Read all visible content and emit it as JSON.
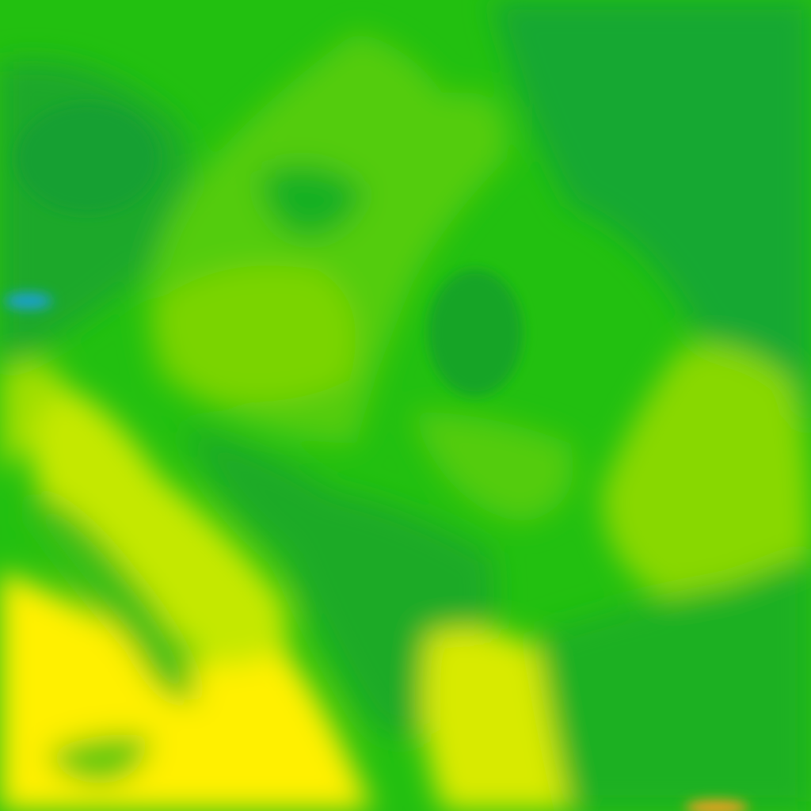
{
  "map": {
    "layer": "temperature-heatmap",
    "palette": {
      "cold_blue": "#1aa0d8",
      "dark_green": "#18a830",
      "green": "#22c010",
      "light_green": "#52cc0c",
      "yellow_green": "#8ed800",
      "lime": "#c4e800",
      "yellow": "#eeee00",
      "bright_yellow": "#fff000",
      "orange": "#f0a020"
    }
  }
}
